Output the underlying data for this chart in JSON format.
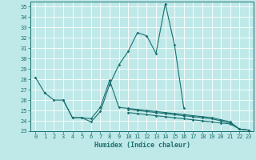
{
  "xlabel": "Humidex (Indice chaleur)",
  "background_color": "#bfe8e8",
  "grid_color": "#ffffff",
  "line_color": "#1a7070",
  "xlim": [
    -0.5,
    23.5
  ],
  "ylim": [
    23,
    35.5
  ],
  "yticks": [
    23,
    24,
    25,
    26,
    27,
    28,
    29,
    30,
    31,
    32,
    33,
    34,
    35
  ],
  "xticks": [
    0,
    1,
    2,
    3,
    4,
    5,
    6,
    7,
    8,
    9,
    10,
    11,
    12,
    13,
    14,
    15,
    16,
    17,
    18,
    19,
    20,
    21,
    22,
    23
  ],
  "series": [
    {
      "segments": [
        {
          "x": [
            0,
            1
          ],
          "y": [
            28.2,
            26.7
          ]
        },
        {
          "x": [
            3,
            4,
            5,
            6,
            7,
            8,
            9,
            10,
            11,
            12,
            13,
            14,
            15,
            16
          ],
          "y": [
            26.0,
            24.3,
            24.3,
            23.9,
            24.9,
            27.5,
            29.4,
            30.7,
            32.5,
            32.2,
            30.5,
            35.3,
            31.3,
            25.2
          ]
        }
      ]
    },
    {
      "segments": [
        {
          "x": [
            1,
            2,
            3,
            4,
            5,
            6,
            7,
            8,
            9,
            10,
            11,
            12,
            13,
            14,
            15,
            16,
            17,
            18,
            19,
            20,
            21,
            22,
            23
          ],
          "y": [
            26.7,
            26.0,
            26.0,
            24.3,
            24.3,
            24.2,
            25.3,
            27.9,
            25.3,
            25.2,
            25.1,
            25.0,
            24.9,
            24.8,
            24.7,
            24.6,
            24.5,
            24.4,
            24.3,
            24.1,
            23.9,
            23.2,
            23.1
          ]
        }
      ]
    },
    {
      "segments": [
        {
          "x": [
            10,
            11,
            12,
            13,
            14,
            15,
            16,
            17,
            18,
            19,
            20,
            21,
            22,
            23
          ],
          "y": [
            25.1,
            25.0,
            24.9,
            24.8,
            24.7,
            24.6,
            24.5,
            24.4,
            24.3,
            24.2,
            24.0,
            23.8,
            23.2,
            23.1
          ]
        }
      ]
    },
    {
      "segments": [
        {
          "x": [
            10,
            11,
            12,
            13,
            14,
            15,
            16,
            17,
            18,
            19,
            20,
            21,
            22,
            23
          ],
          "y": [
            24.8,
            24.7,
            24.6,
            24.5,
            24.4,
            24.3,
            24.2,
            24.1,
            24.0,
            23.9,
            23.8,
            23.7,
            23.2,
            23.1
          ]
        }
      ]
    }
  ]
}
